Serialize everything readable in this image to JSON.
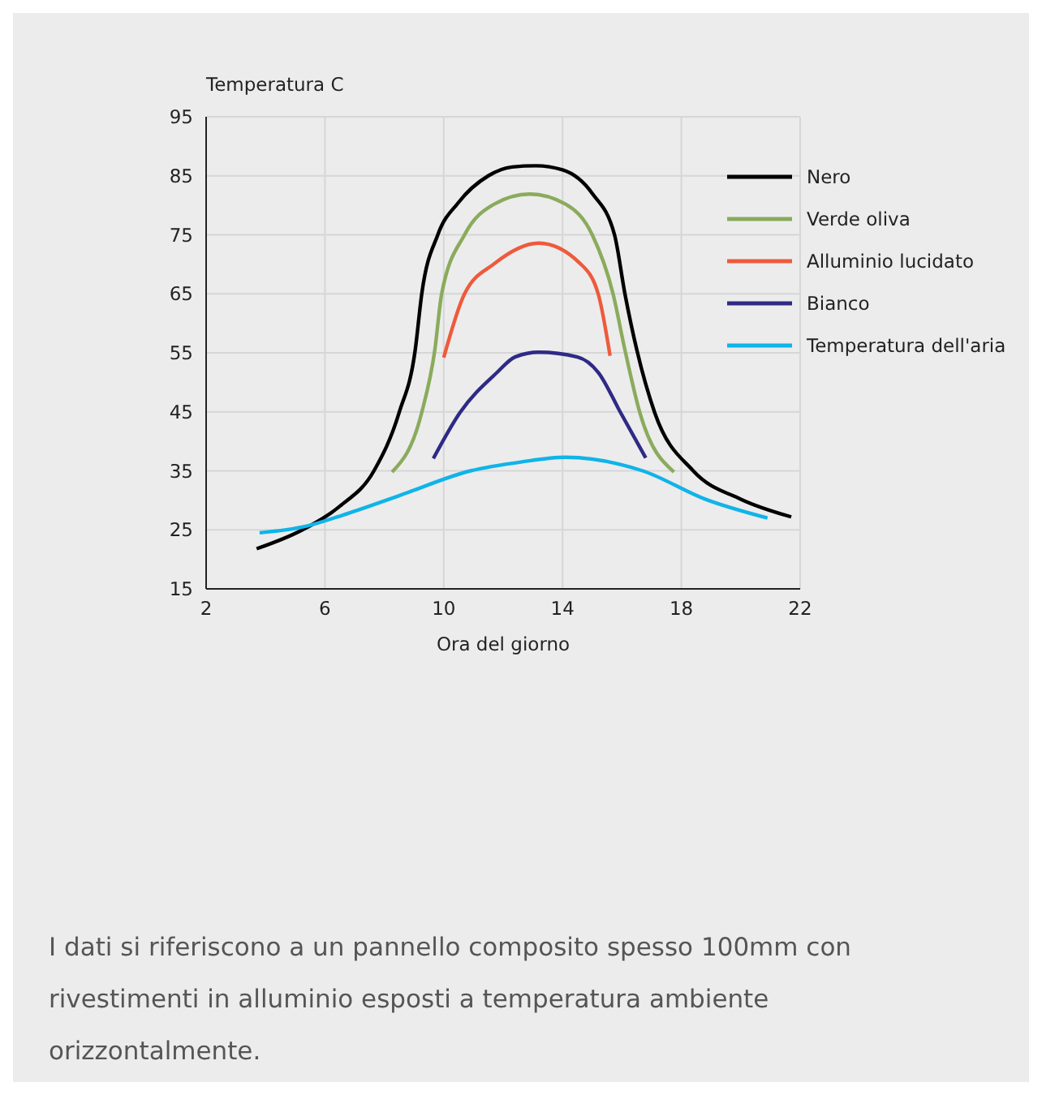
{
  "chart_data": {
    "type": "line",
    "ylabel": "Temperatura C",
    "xlabel": "Ora del giorno",
    "xlim": [
      2,
      22
    ],
    "xticks": [
      2,
      6,
      10,
      14,
      18,
      22
    ],
    "ylim": [
      15,
      95
    ],
    "yticks": [
      15,
      25,
      35,
      45,
      55,
      65,
      75,
      85,
      95
    ],
    "grid": true,
    "legend": "top right",
    "marker": "none",
    "line_style": "solid",
    "series": [
      {
        "name": "Nero",
        "color": "#000000",
        "x": [
          3.7,
          5.2,
          6.5,
          7.65,
          8.5,
          9.04,
          9.26,
          9.8,
          10.5,
          11.5,
          12.3,
          13.1,
          14,
          15,
          15.75,
          16.1,
          16.5,
          17.1,
          18.4,
          20,
          21.7
        ],
        "values": [
          21.8,
          24.9,
          29,
          35,
          44.9,
          55.5,
          65,
          75,
          80.5,
          85,
          86.5,
          86.7,
          86,
          82,
          75,
          65,
          55.5,
          44.9,
          35,
          30.2,
          27.2
        ]
      },
      {
        "name": "Verde oliva",
        "color": "#8aab5c",
        "x": [
          8.26,
          9.26,
          9.7,
          9.93,
          10.7,
          11.7,
          12.9,
          14.1,
          15,
          15.7,
          16.1,
          16.6,
          17.75
        ],
        "values": [
          34.8,
          44.9,
          55.5,
          65,
          75,
          80.2,
          81.9,
          80.2,
          75,
          65,
          55.5,
          44.9,
          34.8
        ]
      },
      {
        "name": "Alluminio lucidato",
        "color": "#ee5a3c",
        "x": [
          10,
          10.7,
          11.7,
          13.2,
          14.6,
          15.2,
          15.6
        ],
        "values": [
          54.2,
          65,
          70.1,
          73.6,
          70.1,
          65,
          54.5
        ]
      },
      {
        "name": "Bianco",
        "color": "#2e2a85",
        "x": [
          9.65,
          10.55,
          11.8,
          12.4,
          13.2,
          14.5,
          15.2,
          15.95,
          16.8
        ],
        "values": [
          37.1,
          44.9,
          51.7,
          54.3,
          55.1,
          54.3,
          51.7,
          44.9,
          37.2
        ]
      },
      {
        "name": "Temperatura dell'aria",
        "color": "#10b4e8",
        "x": [
          3.8,
          5.35,
          6.6,
          8.5,
          10.9,
          12.6,
          14.1,
          16.7,
          18.8,
          20.9
        ],
        "values": [
          24.5,
          25.6,
          27.5,
          30.8,
          35,
          36.5,
          37.3,
          35,
          30.2,
          27
        ]
      }
    ],
    "annotations": [
      "I dati si riferiscono a un pannello composito spesso 100mm con rivestimenti in alluminio esposti a temperatura ambiente orizzontalmente."
    ]
  }
}
